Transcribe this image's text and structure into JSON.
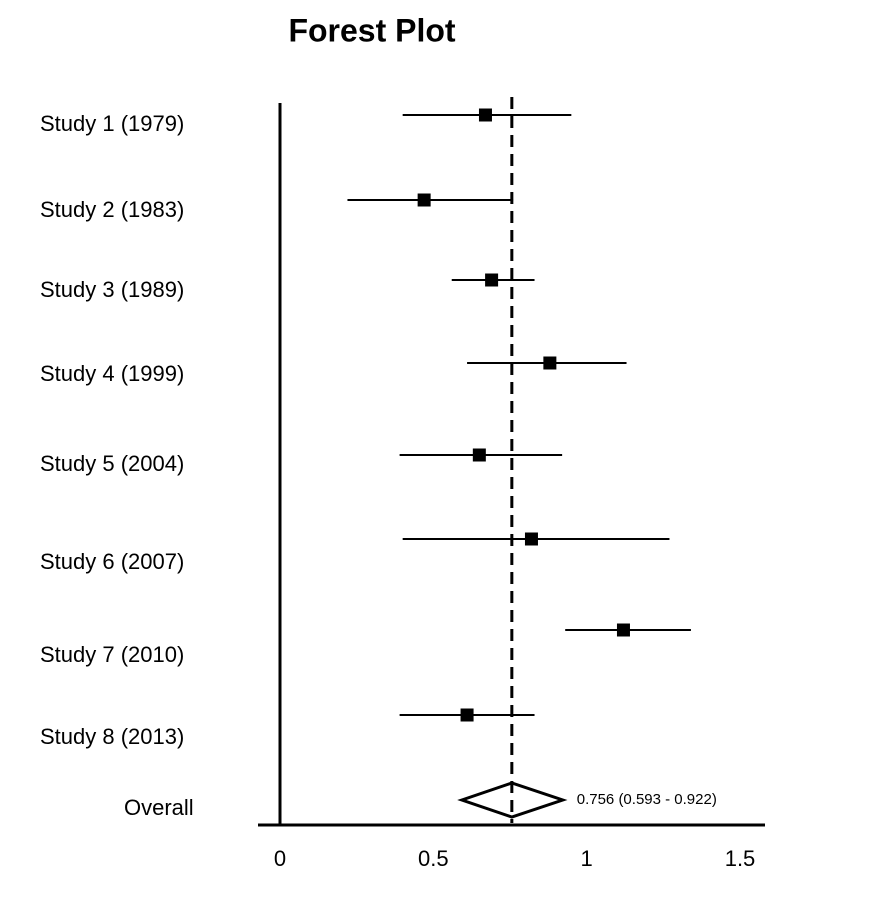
{
  "chart_data": {
    "type": "forest",
    "title": "Forest Plot",
    "categories": [
      "Study 1 (1979)",
      "Study 2 (1983)",
      "Study 3 (1989)",
      "Study 4 (1999)",
      "Study 5 (2004)",
      "Study 6 (2007)",
      "Study 7 (2010)",
      "Study 8 (2013)"
    ],
    "values": [
      0.67,
      0.47,
      0.69,
      0.88,
      0.65,
      0.82,
      1.12,
      0.61
    ],
    "lower": [
      0.4,
      0.22,
      0.56,
      0.61,
      0.39,
      0.4,
      0.93,
      0.39
    ],
    "upper": [
      0.95,
      0.76,
      0.83,
      1.13,
      0.92,
      1.27,
      1.34,
      0.83
    ],
    "overall": {
      "name": "Overall",
      "value": 0.756,
      "lower": 0.593,
      "upper": 0.922,
      "label": "0.756 (0.593 - 0.922)"
    },
    "color": "#000000",
    "xlim": [
      0,
      1.5
    ],
    "xticks": [
      0,
      0.5,
      1,
      1.5
    ]
  }
}
